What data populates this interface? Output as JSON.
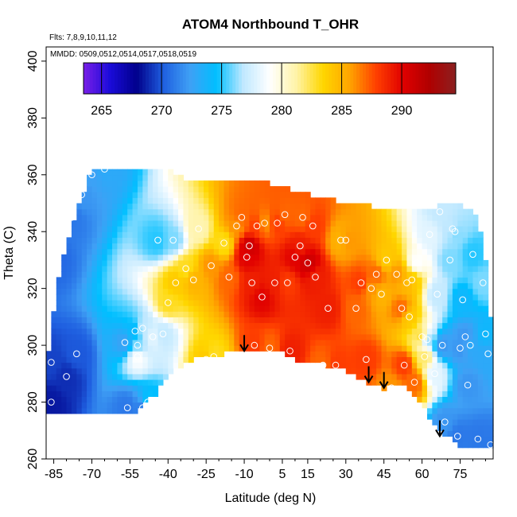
{
  "chart_data": {
    "type": "heatmap",
    "title": "ATOM4 Northbound T_OHR",
    "flights_note": "Flts: 7,8,9,10,11,12",
    "dates_note": "MMDD: 0509,0512,0514,0517,0518,0519",
    "xlabel": "Latitude (deg N)",
    "ylabel": "Theta (C)",
    "xlim": [
      -88,
      88
    ],
    "ylim": [
      260,
      405
    ],
    "x_ticks": [
      -85,
      -70,
      -55,
      -40,
      -25,
      -10,
      5,
      15,
      30,
      45,
      60,
      75
    ],
    "y_ticks": [
      260,
      280,
      300,
      320,
      340,
      360,
      380,
      400
    ],
    "colorbar": {
      "min": 263.5,
      "max": 294.5,
      "ticks": [
        265,
        270,
        275,
        280,
        285,
        290
      ],
      "colors": [
        "#7a1fe8",
        "#1a0bd9",
        "#00008b",
        "#1f5fe0",
        "#3fa0f5",
        "#00bfff",
        "#bfe8ff",
        "#ffffff",
        "#fff3a8",
        "#ffd700",
        "#ffa500",
        "#ff4000",
        "#e00000",
        "#b00000",
        "#8b2020"
      ]
    },
    "arrows": [
      {
        "lat": -10,
        "theta": 298
      },
      {
        "lat": 39,
        "theta": 287
      },
      {
        "lat": 45,
        "theta": 285
      },
      {
        "lat": 67,
        "theta": 268
      }
    ],
    "tropopause": [
      [
        -53,
        276
      ],
      [
        -45,
        283
      ],
      [
        -40,
        290
      ],
      [
        -30,
        295
      ],
      [
        -20,
        296.5
      ],
      [
        -10,
        298.5
      ],
      [
        -2,
        299
      ],
      [
        5,
        297.5
      ],
      [
        12,
        294.5
      ],
      [
        22,
        293
      ],
      [
        30,
        291
      ],
      [
        38,
        287
      ],
      [
        45,
        285
      ],
      [
        52,
        286
      ],
      [
        58,
        282
      ],
      [
        62,
        276
      ],
      [
        66,
        272
      ],
      [
        70,
        268
      ],
      [
        74,
        265
      ],
      [
        78,
        263.5
      ],
      [
        88,
        263.5
      ]
    ],
    "top_boundary": [
      [
        -88,
        292
      ],
      [
        -82,
        330
      ],
      [
        -76,
        347
      ],
      [
        -71,
        359
      ],
      [
        -68,
        362
      ],
      [
        -40,
        362
      ],
      [
        -30,
        357
      ],
      [
        0,
        357
      ],
      [
        20,
        352
      ],
      [
        40,
        349
      ],
      [
        62,
        348
      ],
      [
        70,
        350
      ],
      [
        80,
        348
      ],
      [
        84,
        338
      ],
      [
        86,
        320
      ],
      [
        88,
        300
      ]
    ],
    "samples": [
      {
        "lat": -86,
        "theta": 294,
        "t": 269.5
      },
      {
        "lat": -86,
        "theta": 280,
        "t": 268.5
      },
      {
        "lat": -85,
        "theta": 330,
        "t": 270.5
      },
      {
        "lat": -80,
        "theta": 289,
        "t": 269
      },
      {
        "lat": -78,
        "theta": 345,
        "t": 271
      },
      {
        "lat": -76,
        "theta": 297,
        "t": 270
      },
      {
        "lat": -74,
        "theta": 353,
        "t": 272
      },
      {
        "lat": -70,
        "theta": 360,
        "t": 272.5
      },
      {
        "lat": -65,
        "theta": 362,
        "t": 273
      },
      {
        "lat": -57,
        "theta": 301,
        "t": 272.5
      },
      {
        "lat": -56,
        "theta": 278,
        "t": 271
      },
      {
        "lat": -53,
        "theta": 305,
        "t": 274
      },
      {
        "lat": -52,
        "theta": 300,
        "t": 276
      },
      {
        "lat": -52,
        "theta": 296,
        "t": 279
      },
      {
        "lat": -50,
        "theta": 306,
        "t": 277
      },
      {
        "lat": -50,
        "theta": 278,
        "t": 271
      },
      {
        "lat": -48,
        "theta": 280,
        "t": 275
      },
      {
        "lat": -46,
        "theta": 303,
        "t": 278
      },
      {
        "lat": -44,
        "theta": 337,
        "t": 275
      },
      {
        "lat": -42,
        "theta": 304,
        "t": 277
      },
      {
        "lat": -40,
        "theta": 315,
        "t": 283
      },
      {
        "lat": -38,
        "theta": 337,
        "t": 276
      },
      {
        "lat": -37,
        "theta": 322,
        "t": 284
      },
      {
        "lat": -33,
        "theta": 327,
        "t": 283
      },
      {
        "lat": -30,
        "theta": 323,
        "t": 285
      },
      {
        "lat": -28,
        "theta": 341,
        "t": 281
      },
      {
        "lat": -25,
        "theta": 295,
        "t": 284
      },
      {
        "lat": -23,
        "theta": 328,
        "t": 286
      },
      {
        "lat": -22,
        "theta": 296,
        "t": 283
      },
      {
        "lat": -18,
        "theta": 336,
        "t": 283
      },
      {
        "lat": -16,
        "theta": 324,
        "t": 287
      },
      {
        "lat": -15,
        "theta": 289,
        "t": 285
      },
      {
        "lat": -13,
        "theta": 342,
        "t": 286
      },
      {
        "lat": -11,
        "theta": 345,
        "t": 287
      },
      {
        "lat": -9,
        "theta": 331,
        "t": 290
      },
      {
        "lat": -8,
        "theta": 335,
        "t": 291
      },
      {
        "lat": -7,
        "theta": 322,
        "t": 289
      },
      {
        "lat": -6,
        "theta": 300,
        "t": 288
      },
      {
        "lat": -5,
        "theta": 342,
        "t": 288
      },
      {
        "lat": -3,
        "theta": 317,
        "t": 290
      },
      {
        "lat": -2,
        "theta": 343,
        "t": 286
      },
      {
        "lat": 0,
        "theta": 299,
        "t": 287
      },
      {
        "lat": 2,
        "theta": 322,
        "t": 289
      },
      {
        "lat": 3,
        "theta": 343,
        "t": 288
      },
      {
        "lat": 6,
        "theta": 346,
        "t": 287
      },
      {
        "lat": 7,
        "theta": 322,
        "t": 288
      },
      {
        "lat": 8,
        "theta": 298,
        "t": 289
      },
      {
        "lat": 10,
        "theta": 331,
        "t": 290
      },
      {
        "lat": 12,
        "theta": 335,
        "t": 289
      },
      {
        "lat": 13,
        "theta": 345,
        "t": 287
      },
      {
        "lat": 15,
        "theta": 329,
        "t": 291
      },
      {
        "lat": 17,
        "theta": 342,
        "t": 288
      },
      {
        "lat": 18,
        "theta": 324,
        "t": 289
      },
      {
        "lat": 21,
        "theta": 293,
        "t": 287
      },
      {
        "lat": 23,
        "theta": 313,
        "t": 289
      },
      {
        "lat": 26,
        "theta": 293,
        "t": 288
      },
      {
        "lat": 28,
        "theta": 337,
        "t": 285
      },
      {
        "lat": 30,
        "theta": 337,
        "t": 286
      },
      {
        "lat": 34,
        "theta": 313,
        "t": 287
      },
      {
        "lat": 36,
        "theta": 322,
        "t": 288
      },
      {
        "lat": 38,
        "theta": 295,
        "t": 288
      },
      {
        "lat": 40,
        "theta": 320,
        "t": 286
      },
      {
        "lat": 42,
        "theta": 325,
        "t": 287
      },
      {
        "lat": 44,
        "theta": 318,
        "t": 285
      },
      {
        "lat": 46,
        "theta": 330,
        "t": 284
      },
      {
        "lat": 48,
        "theta": 285,
        "t": 286
      },
      {
        "lat": 50,
        "theta": 325,
        "t": 286
      },
      {
        "lat": 52,
        "theta": 313,
        "t": 287
      },
      {
        "lat": 53,
        "theta": 293,
        "t": 288
      },
      {
        "lat": 54,
        "theta": 322,
        "t": 285
      },
      {
        "lat": 55,
        "theta": 310,
        "t": 284
      },
      {
        "lat": 56,
        "theta": 323,
        "t": 284
      },
      {
        "lat": 57,
        "theta": 287,
        "t": 287
      },
      {
        "lat": 58,
        "theta": 329,
        "t": 279
      },
      {
        "lat": 60,
        "theta": 303,
        "t": 283
      },
      {
        "lat": 61,
        "theta": 296,
        "t": 282
      },
      {
        "lat": 62,
        "theta": 302,
        "t": 276
      },
      {
        "lat": 63,
        "theta": 339,
        "t": 278
      },
      {
        "lat": 65,
        "theta": 290,
        "t": 278
      },
      {
        "lat": 66,
        "theta": 318,
        "t": 277
      },
      {
        "lat": 67,
        "theta": 347,
        "t": 277
      },
      {
        "lat": 68,
        "theta": 300,
        "t": 272
      },
      {
        "lat": 69,
        "theta": 273,
        "t": 272
      },
      {
        "lat": 71,
        "theta": 330,
        "t": 276
      },
      {
        "lat": 72,
        "theta": 341,
        "t": 277
      },
      {
        "lat": 73,
        "theta": 340,
        "t": 276
      },
      {
        "lat": 74,
        "theta": 268,
        "t": 271
      },
      {
        "lat": 75,
        "theta": 299,
        "t": 272
      },
      {
        "lat": 76,
        "theta": 316,
        "t": 274
      },
      {
        "lat": 77,
        "theta": 303,
        "t": 272
      },
      {
        "lat": 78,
        "theta": 286,
        "t": 272
      },
      {
        "lat": 79,
        "theta": 300,
        "t": 273
      },
      {
        "lat": 80,
        "theta": 332,
        "t": 275
      },
      {
        "lat": 82,
        "theta": 267,
        "t": 271
      },
      {
        "lat": 84,
        "theta": 322,
        "t": 276
      },
      {
        "lat": 85,
        "theta": 304,
        "t": 274
      },
      {
        "lat": 86,
        "theta": 297,
        "t": 273
      },
      {
        "lat": 87,
        "theta": 265,
        "t": 271
      }
    ]
  }
}
